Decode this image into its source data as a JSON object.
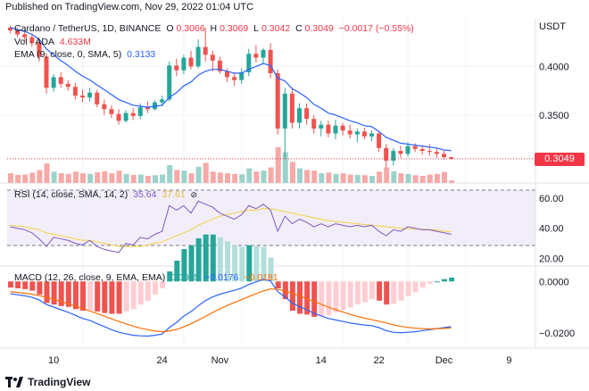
{
  "header": {
    "published": "Published on TradingView.com, Nov 29, 2022 01:04 UTC"
  },
  "footer": {
    "brand": "TradingView"
  },
  "legend": {
    "symbol": "Cardano / TetherUS, 1D, BINANCE",
    "open_label": "O",
    "open": "0.3066",
    "high_label": "H",
    "high": "0.3069",
    "low_label": "L",
    "low": "0.3042",
    "close_label": "C",
    "close": "0.3049",
    "change": "−0.0017 (−0.55%)",
    "volume_label": "Vol · ADA",
    "volume": "4.633M",
    "ema_label": "EMA (9, close, 0, SMA, 5)",
    "ema_value": "0.3133",
    "rsi_label": "RSI (14, close, SMA, 14, 2)",
    "rsi_value": "35.64",
    "rsi_sma": "37.61",
    "macd_label": "MACD (12, 26, close, 9, EMA, EMA)",
    "macd_hist": "0.0005",
    "macd_line": "−0.0176",
    "macd_signal": "−0.0181"
  },
  "price_tag": "0.3049",
  "colors": {
    "up": "#26a69a",
    "down": "#ef5350",
    "up_vol": "#9bd3cc",
    "down_vol": "#f7a9a8",
    "ema": "#2962ff",
    "rsi": "#7e57c2",
    "rsi_sma": "#f4d03f",
    "macd": "#2962ff",
    "signal": "#ff6d00",
    "hist_up": "#26a69a",
    "hist_down": "#ef5350",
    "hist_up_light": "#b2dfdb",
    "hist_down_light": "#ffcdd2"
  },
  "chart_data": [
    {
      "type": "candlestick",
      "title": "Cardano / TetherUS, 1D, BINANCE",
      "currency": "USDT",
      "x_ticks": [
        "10",
        "24",
        "Nov",
        "14",
        "22",
        "Dec",
        "9"
      ],
      "y_ticks": [
        "0.4000",
        "0.3500"
      ],
      "ylim": [
        0.28,
        0.45
      ],
      "last_price": 0.3049,
      "candles": [
        {
          "o": 0.44,
          "h": 0.442,
          "l": 0.434,
          "c": 0.437
        },
        {
          "o": 0.437,
          "h": 0.44,
          "l": 0.43,
          "c": 0.433
        },
        {
          "o": 0.433,
          "h": 0.438,
          "l": 0.426,
          "c": 0.43
        },
        {
          "o": 0.43,
          "h": 0.434,
          "l": 0.42,
          "c": 0.424
        },
        {
          "o": 0.424,
          "h": 0.43,
          "l": 0.405,
          "c": 0.41
        },
        {
          "o": 0.41,
          "h": 0.414,
          "l": 0.372,
          "c": 0.378
        },
        {
          "o": 0.378,
          "h": 0.392,
          "l": 0.374,
          "c": 0.389
        },
        {
          "o": 0.389,
          "h": 0.394,
          "l": 0.378,
          "c": 0.382
        },
        {
          "o": 0.382,
          "h": 0.386,
          "l": 0.375,
          "c": 0.379
        },
        {
          "o": 0.379,
          "h": 0.383,
          "l": 0.366,
          "c": 0.37
        },
        {
          "o": 0.37,
          "h": 0.376,
          "l": 0.363,
          "c": 0.368
        },
        {
          "o": 0.368,
          "h": 0.378,
          "l": 0.364,
          "c": 0.373
        },
        {
          "o": 0.373,
          "h": 0.376,
          "l": 0.358,
          "c": 0.361
        },
        {
          "o": 0.361,
          "h": 0.366,
          "l": 0.35,
          "c": 0.356
        },
        {
          "o": 0.356,
          "h": 0.36,
          "l": 0.347,
          "c": 0.351
        },
        {
          "o": 0.351,
          "h": 0.356,
          "l": 0.34,
          "c": 0.344
        },
        {
          "o": 0.344,
          "h": 0.355,
          "l": 0.342,
          "c": 0.352
        },
        {
          "o": 0.352,
          "h": 0.357,
          "l": 0.345,
          "c": 0.349
        },
        {
          "o": 0.349,
          "h": 0.362,
          "l": 0.346,
          "c": 0.358
        },
        {
          "o": 0.358,
          "h": 0.364,
          "l": 0.352,
          "c": 0.356
        },
        {
          "o": 0.356,
          "h": 0.365,
          "l": 0.355,
          "c": 0.363
        },
        {
          "o": 0.363,
          "h": 0.37,
          "l": 0.359,
          "c": 0.366
        },
        {
          "o": 0.366,
          "h": 0.405,
          "l": 0.364,
          "c": 0.401
        },
        {
          "o": 0.401,
          "h": 0.408,
          "l": 0.39,
          "c": 0.396
        },
        {
          "o": 0.396,
          "h": 0.412,
          "l": 0.392,
          "c": 0.409
        },
        {
          "o": 0.409,
          "h": 0.416,
          "l": 0.397,
          "c": 0.4
        },
        {
          "o": 0.4,
          "h": 0.428,
          "l": 0.398,
          "c": 0.42
        },
        {
          "o": 0.42,
          "h": 0.44,
          "l": 0.405,
          "c": 0.412
        },
        {
          "o": 0.412,
          "h": 0.416,
          "l": 0.395,
          "c": 0.406
        },
        {
          "o": 0.406,
          "h": 0.41,
          "l": 0.392,
          "c": 0.395
        },
        {
          "o": 0.395,
          "h": 0.398,
          "l": 0.384,
          "c": 0.389
        },
        {
          "o": 0.389,
          "h": 0.394,
          "l": 0.38,
          "c": 0.386
        },
        {
          "o": 0.386,
          "h": 0.398,
          "l": 0.382,
          "c": 0.394
        },
        {
          "o": 0.394,
          "h": 0.418,
          "l": 0.39,
          "c": 0.413
        },
        {
          "o": 0.413,
          "h": 0.422,
          "l": 0.404,
          "c": 0.409
        },
        {
          "o": 0.409,
          "h": 0.419,
          "l": 0.402,
          "c": 0.417
        },
        {
          "o": 0.417,
          "h": 0.424,
          "l": 0.388,
          "c": 0.393
        },
        {
          "o": 0.393,
          "h": 0.397,
          "l": 0.33,
          "c": 0.336
        },
        {
          "o": 0.336,
          "h": 0.378,
          "l": 0.305,
          "c": 0.372
        },
        {
          "o": 0.372,
          "h": 0.378,
          "l": 0.336,
          "c": 0.342
        },
        {
          "o": 0.342,
          "h": 0.362,
          "l": 0.336,
          "c": 0.357
        },
        {
          "o": 0.357,
          "h": 0.362,
          "l": 0.34,
          "c": 0.346
        },
        {
          "o": 0.346,
          "h": 0.35,
          "l": 0.331,
          "c": 0.336
        },
        {
          "o": 0.336,
          "h": 0.344,
          "l": 0.328,
          "c": 0.34
        },
        {
          "o": 0.34,
          "h": 0.344,
          "l": 0.327,
          "c": 0.331
        },
        {
          "o": 0.331,
          "h": 0.345,
          "l": 0.325,
          "c": 0.339
        },
        {
          "o": 0.339,
          "h": 0.342,
          "l": 0.329,
          "c": 0.334
        },
        {
          "o": 0.334,
          "h": 0.34,
          "l": 0.326,
          "c": 0.33
        },
        {
          "o": 0.33,
          "h": 0.336,
          "l": 0.322,
          "c": 0.333
        },
        {
          "o": 0.333,
          "h": 0.337,
          "l": 0.325,
          "c": 0.328
        },
        {
          "o": 0.328,
          "h": 0.334,
          "l": 0.323,
          "c": 0.331
        },
        {
          "o": 0.331,
          "h": 0.333,
          "l": 0.312,
          "c": 0.316
        },
        {
          "o": 0.316,
          "h": 0.32,
          "l": 0.296,
          "c": 0.303
        },
        {
          "o": 0.303,
          "h": 0.316,
          "l": 0.298,
          "c": 0.313
        },
        {
          "o": 0.313,
          "h": 0.318,
          "l": 0.306,
          "c": 0.31
        },
        {
          "o": 0.31,
          "h": 0.322,
          "l": 0.307,
          "c": 0.318
        },
        {
          "o": 0.318,
          "h": 0.321,
          "l": 0.312,
          "c": 0.315
        },
        {
          "o": 0.315,
          "h": 0.319,
          "l": 0.309,
          "c": 0.313
        },
        {
          "o": 0.313,
          "h": 0.32,
          "l": 0.308,
          "c": 0.312
        },
        {
          "o": 0.312,
          "h": 0.316,
          "l": 0.306,
          "c": 0.31
        },
        {
          "o": 0.31,
          "h": 0.313,
          "l": 0.304,
          "c": 0.3066
        },
        {
          "o": 0.3066,
          "h": 0.3069,
          "l": 0.3042,
          "c": 0.3049
        }
      ],
      "ema": [
        0.44,
        0.438,
        0.436,
        0.433,
        0.428,
        0.418,
        0.412,
        0.406,
        0.401,
        0.395,
        0.39,
        0.386,
        0.381,
        0.376,
        0.371,
        0.366,
        0.363,
        0.36,
        0.359,
        0.358,
        0.359,
        0.36,
        0.368,
        0.373,
        0.38,
        0.384,
        0.391,
        0.395,
        0.397,
        0.397,
        0.395,
        0.393,
        0.393,
        0.397,
        0.4,
        0.403,
        0.401,
        0.388,
        0.385,
        0.377,
        0.373,
        0.368,
        0.361,
        0.357,
        0.352,
        0.35,
        0.347,
        0.344,
        0.342,
        0.339,
        0.338,
        0.333,
        0.327,
        0.324,
        0.321,
        0.32,
        0.319,
        0.318,
        0.317,
        0.316,
        0.314,
        0.3133
      ],
      "volume": [
        30,
        25,
        26,
        32,
        40,
        60,
        35,
        30,
        28,
        35,
        30,
        28,
        33,
        36,
        30,
        38,
        28,
        25,
        26,
        22,
        24,
        26,
        55,
        40,
        38,
        30,
        50,
        62,
        35,
        32,
        30,
        28,
        27,
        45,
        35,
        38,
        48,
        110,
        95,
        65,
        45,
        40,
        38,
        30,
        32,
        28,
        30,
        26,
        25,
        24,
        22,
        35,
        48,
        36,
        30,
        28,
        24,
        22,
        26,
        28,
        34,
        8
      ]
    },
    {
      "type": "line",
      "title": "RSI (14, close, SMA, 14, 2)",
      "y_ticks": [
        "60.00",
        "40.00",
        "20.00"
      ],
      "ylim": [
        15,
        70
      ],
      "bands": [
        70,
        30
      ],
      "series": [
        {
          "name": "RSI",
          "values": [
            41,
            40,
            39,
            37,
            33,
            28,
            34,
            33,
            32,
            30,
            29,
            32,
            28,
            26,
            25,
            24,
            30,
            29,
            34,
            33,
            36,
            38,
            55,
            52,
            55,
            50,
            58,
            56,
            54,
            50,
            48,
            46,
            49,
            55,
            53,
            56,
            52,
            38,
            48,
            43,
            46,
            44,
            41,
            43,
            41,
            43,
            42,
            41,
            42,
            41,
            42,
            38,
            35,
            39,
            38,
            41,
            40,
            39,
            39,
            38,
            37,
            36
          ]
        },
        {
          "name": "RSI-based MA",
          "values": [
            42,
            41.5,
            41,
            40,
            39,
            37,
            36,
            35,
            34,
            33,
            32,
            32,
            31,
            30,
            29,
            28,
            28,
            28,
            28,
            29,
            30,
            31,
            33,
            35,
            37,
            39,
            42,
            44,
            46,
            48,
            49,
            50,
            51,
            52,
            52,
            53,
            53,
            52,
            51,
            50,
            49,
            48,
            47,
            46,
            45,
            44.5,
            44,
            43.5,
            43,
            42.5,
            42,
            41.5,
            41,
            40.5,
            40,
            39.8,
            39.6,
            39.4,
            39.2,
            38.8,
            38.2,
            37.61
          ]
        }
      ]
    },
    {
      "type": "line",
      "title": "MACD (12, 26, close, 9, EMA, EMA)",
      "y_ticks": [
        "0.0000",
        "−0.0200"
      ],
      "ylim": [
        -0.026,
        0.006
      ],
      "series": [
        {
          "name": "MACD",
          "values": [
            -0.0048,
            -0.0052,
            -0.0056,
            -0.0062,
            -0.0072,
            -0.009,
            -0.01,
            -0.011,
            -0.012,
            -0.0132,
            -0.0144,
            -0.0152,
            -0.0164,
            -0.0176,
            -0.0188,
            -0.0198,
            -0.0204,
            -0.021,
            -0.0212,
            -0.0213,
            -0.021,
            -0.0205,
            -0.018,
            -0.016,
            -0.0135,
            -0.0118,
            -0.0095,
            -0.0075,
            -0.006,
            -0.005,
            -0.0042,
            -0.0035,
            -0.0026,
            -0.0012,
            -0.0002,
            0.0008,
            0.0002,
            -0.004,
            -0.006,
            -0.0084,
            -0.0098,
            -0.011,
            -0.0124,
            -0.0134,
            -0.0144,
            -0.015,
            -0.0156,
            -0.0162,
            -0.0166,
            -0.017,
            -0.0172,
            -0.018,
            -0.0192,
            -0.0198,
            -0.02,
            -0.0198,
            -0.0196,
            -0.0192,
            -0.0188,
            -0.0184,
            -0.018,
            -0.0176
          ]
        },
        {
          "name": "Signal",
          "values": [
            -0.004,
            -0.0043,
            -0.0046,
            -0.005,
            -0.0055,
            -0.0062,
            -0.007,
            -0.0078,
            -0.0087,
            -0.0096,
            -0.0106,
            -0.0115,
            -0.0125,
            -0.0135,
            -0.0146,
            -0.0156,
            -0.0165,
            -0.0174,
            -0.0182,
            -0.0188,
            -0.0193,
            -0.0196,
            -0.0193,
            -0.0187,
            -0.0177,
            -0.0165,
            -0.0151,
            -0.0136,
            -0.0121,
            -0.0107,
            -0.0094,
            -0.0082,
            -0.0071,
            -0.0059,
            -0.0048,
            -0.0037,
            -0.0029,
            -0.0031,
            -0.0037,
            -0.0046,
            -0.0056,
            -0.0067,
            -0.0078,
            -0.0089,
            -0.01,
            -0.011,
            -0.0119,
            -0.0128,
            -0.0136,
            -0.0143,
            -0.0149,
            -0.0155,
            -0.0162,
            -0.0169,
            -0.0175,
            -0.0179,
            -0.0182,
            -0.0184,
            -0.0185,
            -0.0184,
            -0.0183,
            -0.0181
          ]
        }
      ]
    }
  ]
}
